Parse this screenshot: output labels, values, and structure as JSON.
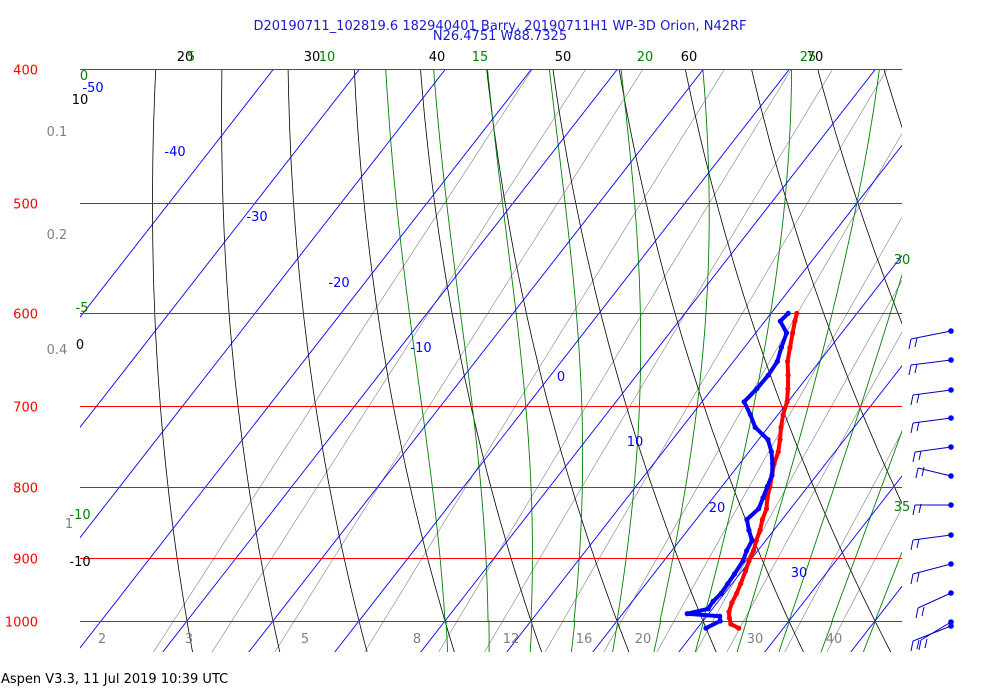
{
  "header": {
    "line1": "D20190711_102819.6 182940401 Barry, 20190711H1 WP-3D Orion, N42RF",
    "line2": "N26.4751 W88.7325"
  },
  "footer": "Aspen V3.3, 11 Jul 2019  10:39 UTC",
  "colors": {
    "isobar": "#ff0000",
    "isotherm": "#0000ff",
    "dry_adiabat": "#000000",
    "moist_adiabat": "#008000",
    "mixing_ratio": "#808080",
    "temperature": "#ff0000",
    "dewpoint": "#0000ff"
  },
  "chart_data": {
    "type": "skew-t",
    "pressure_levels": [
      400,
      500,
      600,
      700,
      800,
      900,
      1000
    ],
    "pressure_labels": [
      "400",
      "500",
      "600",
      "700",
      "800",
      "900",
      "1000"
    ],
    "isotherm_labels": [
      "-50",
      "-40",
      "-30",
      "-20",
      "-10",
      "0",
      "10",
      "20",
      "30"
    ],
    "dry_adiabat_top_labels": [
      "20",
      "30",
      "40",
      "50",
      "60",
      "70"
    ],
    "dry_adiabat_left_labels": [
      "10",
      "0",
      "-10"
    ],
    "moist_adiabat_top_labels": [
      "5",
      "10",
      "15",
      "20",
      "25"
    ],
    "moist_adiabat_left_labels": [
      "0",
      "-5",
      "-10"
    ],
    "moist_adiabat_right_labels": [
      "30",
      "35"
    ],
    "mixing_ratio_left_labels": [
      "0.1",
      "0.2",
      "0.4",
      "1"
    ],
    "mixing_ratio_bottom_labels": [
      "2",
      "3",
      "5",
      "8",
      "12",
      "16",
      "20",
      "30",
      "40"
    ],
    "temperature_profile": [
      {
        "p": 1012,
        "t": 24.8
      },
      {
        "p": 1005,
        "t": 23.5
      },
      {
        "p": 995,
        "t": 22.8
      },
      {
        "p": 985,
        "t": 22.2
      },
      {
        "p": 970,
        "t": 21.7
      },
      {
        "p": 955,
        "t": 21.4
      },
      {
        "p": 940,
        "t": 21.0
      },
      {
        "p": 920,
        "t": 20.4
      },
      {
        "p": 905,
        "t": 19.9
      },
      {
        "p": 890,
        "t": 19.5
      },
      {
        "p": 875,
        "t": 18.9
      },
      {
        "p": 860,
        "t": 18.4
      },
      {
        "p": 845,
        "t": 17.7
      },
      {
        "p": 830,
        "t": 17.2
      },
      {
        "p": 815,
        "t": 16.3
      },
      {
        "p": 800,
        "t": 15.6
      },
      {
        "p": 785,
        "t": 14.8
      },
      {
        "p": 770,
        "t": 14.0
      },
      {
        "p": 755,
        "t": 13.4
      },
      {
        "p": 740,
        "t": 12.5
      },
      {
        "p": 725,
        "t": 11.5
      },
      {
        "p": 710,
        "t": 10.6
      },
      {
        "p": 695,
        "t": 9.9
      },
      {
        "p": 680,
        "t": 8.8
      },
      {
        "p": 665,
        "t": 7.6
      },
      {
        "p": 650,
        "t": 6.3
      },
      {
        "p": 635,
        "t": 5.3
      },
      {
        "p": 620,
        "t": 4.3
      },
      {
        "p": 608,
        "t": 3.5
      },
      {
        "p": 600,
        "t": 3.0
      }
    ],
    "dewpoint_profile": [
      {
        "p": 1012,
        "t": 21.0
      },
      {
        "p": 1000,
        "t": 22.0
      },
      {
        "p": 992,
        "t": 21.5
      },
      {
        "p": 988,
        "t": 17.5
      },
      {
        "p": 980,
        "t": 19.5
      },
      {
        "p": 968,
        "t": 19.4
      },
      {
        "p": 955,
        "t": 19.6
      },
      {
        "p": 940,
        "t": 19.5
      },
      {
        "p": 925,
        "t": 19.4
      },
      {
        "p": 905,
        "t": 19.2
      },
      {
        "p": 890,
        "t": 18.7
      },
      {
        "p": 875,
        "t": 18.4
      },
      {
        "p": 860,
        "t": 17.1
      },
      {
        "p": 845,
        "t": 15.9
      },
      {
        "p": 830,
        "t": 16.3
      },
      {
        "p": 815,
        "t": 15.8
      },
      {
        "p": 800,
        "t": 15.3
      },
      {
        "p": 785,
        "t": 14.8
      },
      {
        "p": 770,
        "t": 13.8
      },
      {
        "p": 755,
        "t": 12.6
      },
      {
        "p": 740,
        "t": 11.1
      },
      {
        "p": 725,
        "t": 8.5
      },
      {
        "p": 710,
        "t": 6.8
      },
      {
        "p": 695,
        "t": 4.9
      },
      {
        "p": 680,
        "t": 5.2
      },
      {
        "p": 665,
        "t": 5.3
      },
      {
        "p": 650,
        "t": 5.1
      },
      {
        "p": 635,
        "t": 4.3
      },
      {
        "p": 620,
        "t": 3.6
      },
      {
        "p": 608,
        "t": 1.8
      },
      {
        "p": 600,
        "t": 2.0
      }
    ]
  }
}
